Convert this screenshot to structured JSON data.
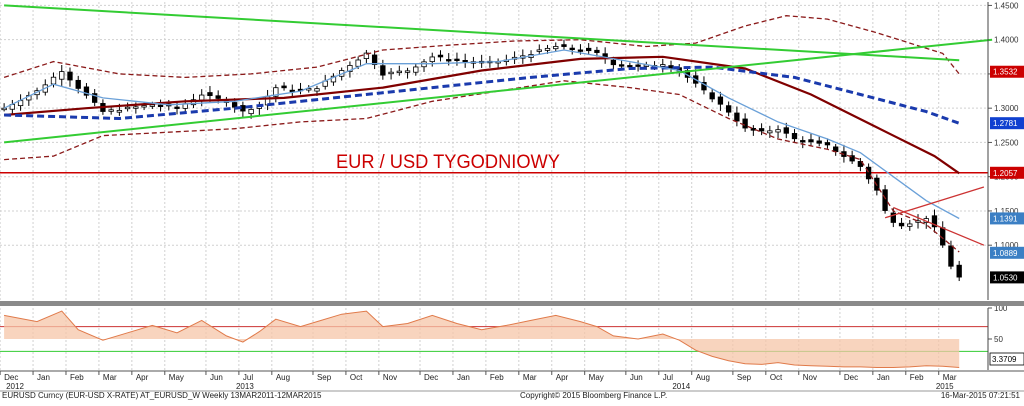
{
  "chart_data": {
    "type": "candlestick",
    "annotation": "EUR / USD TYGODNIOWY",
    "price_axis": {
      "ticks": [
        "1.4500",
        "1.4000",
        "1.3500",
        "1.3000",
        "1.2500",
        "1.2000",
        "1.1500",
        "1.1000"
      ],
      "range": [
        1.02,
        1.455
      ]
    },
    "price_labels": [
      {
        "text": "1.3532",
        "value": 1.3532,
        "color": "#cc0000"
      },
      {
        "text": "1.2781",
        "value": 1.2781,
        "color": "#1040d0"
      },
      {
        "text": "1.2057",
        "value": 1.2057,
        "color": "#cc0000"
      },
      {
        "text": "1.1391",
        "value": 1.1391,
        "color": "#3b7fc4"
      },
      {
        "text": "1.0889",
        "value": 1.0889,
        "color": "#3b7fc4"
      },
      {
        "text": "1.0530",
        "value": 1.053,
        "color": "#000000"
      }
    ],
    "horizontal_line": {
      "value": 1.2057,
      "color": "#cc0000"
    },
    "weeks": 120,
    "time_axis": {
      "months": [
        {
          "label": "Dec",
          "week": 0
        },
        {
          "label": "Jan",
          "week": 4
        },
        {
          "label": "Feb",
          "week": 8
        },
        {
          "label": "Mar",
          "week": 12
        },
        {
          "label": "Apr",
          "week": 16
        },
        {
          "label": "May",
          "week": 20
        },
        {
          "label": "Jun",
          "week": 25
        },
        {
          "label": "Jul",
          "week": 29
        },
        {
          "label": "Aug",
          "week": 33
        },
        {
          "label": "Sep",
          "week": 38
        },
        {
          "label": "Oct",
          "week": 42
        },
        {
          "label": "Nov",
          "week": 46
        },
        {
          "label": "Dec",
          "week": 51
        },
        {
          "label": "Jan",
          "week": 55
        },
        {
          "label": "Feb",
          "week": 59
        },
        {
          "label": "Mar",
          "week": 63
        },
        {
          "label": "Apr",
          "week": 67
        },
        {
          "label": "May",
          "week": 71
        },
        {
          "label": "Jun",
          "week": 76
        },
        {
          "label": "Jul",
          "week": 80
        },
        {
          "label": "Aug",
          "week": 84
        },
        {
          "label": "Sep",
          "week": 89
        },
        {
          "label": "Oct",
          "week": 93
        },
        {
          "label": "Nov",
          "week": 97
        },
        {
          "label": "Dec",
          "week": 102
        },
        {
          "label": "Jan",
          "week": 106
        },
        {
          "label": "Feb",
          "week": 110
        },
        {
          "label": "Mar",
          "week": 114
        }
      ],
      "years": [
        {
          "label": "2012",
          "week": 0
        },
        {
          "label": "2013",
          "week": 29
        },
        {
          "label": "2014",
          "week": 82
        },
        {
          "label": "2015",
          "week": 114
        }
      ]
    },
    "price_path": [
      [
        0,
        1.3
      ],
      [
        4,
        1.325
      ],
      [
        7,
        1.355
      ],
      [
        9,
        1.33
      ],
      [
        12,
        1.295
      ],
      [
        15,
        1.3
      ],
      [
        18,
        1.305
      ],
      [
        21,
        1.3
      ],
      [
        24,
        1.32
      ],
      [
        27,
        1.31
      ],
      [
        29,
        1.295
      ],
      [
        31,
        1.305
      ],
      [
        33,
        1.33
      ],
      [
        36,
        1.325
      ],
      [
        38,
        1.33
      ],
      [
        41,
        1.355
      ],
      [
        44,
        1.38
      ],
      [
        46,
        1.35
      ],
      [
        49,
        1.355
      ],
      [
        52,
        1.375
      ],
      [
        55,
        1.37
      ],
      [
        58,
        1.365
      ],
      [
        61,
        1.37
      ],
      [
        64,
        1.38
      ],
      [
        67,
        1.39
      ],
      [
        70,
        1.385
      ],
      [
        72,
        1.38
      ],
      [
        74,
        1.365
      ],
      [
        77,
        1.36
      ],
      [
        80,
        1.365
      ],
      [
        82,
        1.355
      ],
      [
        84,
        1.335
      ],
      [
        86,
        1.315
      ],
      [
        88,
        1.295
      ],
      [
        90,
        1.27
      ],
      [
        92,
        1.265
      ],
      [
        94,
        1.27
      ],
      [
        96,
        1.255
      ],
      [
        98,
        1.25
      ],
      [
        100,
        1.245
      ],
      [
        102,
        1.23
      ],
      [
        104,
        1.215
      ],
      [
        106,
        1.18
      ],
      [
        107,
        1.15
      ],
      [
        108,
        1.135
      ],
      [
        109,
        1.13
      ],
      [
        111,
        1.135
      ],
      [
        112,
        1.14
      ],
      [
        113,
        1.125
      ],
      [
        114,
        1.1
      ],
      [
        115,
        1.07
      ],
      [
        116,
        1.053
      ]
    ],
    "overlays": [
      {
        "name": "",
        "color": "#800000",
        "style": "solid",
        "points": [
          [
            0,
            1.29
          ],
          [
            10,
            1.3
          ],
          [
            22,
            1.31
          ],
          [
            34,
            1.315
          ],
          [
            46,
            1.33
          ],
          [
            58,
            1.355
          ],
          [
            70,
            1.372
          ],
          [
            80,
            1.375
          ],
          [
            90,
            1.358
          ],
          [
            98,
            1.32
          ],
          [
            106,
            1.272
          ],
          [
            113,
            1.23
          ],
          [
            116,
            1.205
          ]
        ]
      },
      {
        "name": "",
        "color": "#1a3aad",
        "style": "dashed",
        "points": [
          [
            0,
            1.29
          ],
          [
            14,
            1.285
          ],
          [
            28,
            1.3
          ],
          [
            40,
            1.315
          ],
          [
            52,
            1.33
          ],
          [
            64,
            1.345
          ],
          [
            76,
            1.358
          ],
          [
            86,
            1.36
          ],
          [
            96,
            1.345
          ],
          [
            104,
            1.32
          ],
          [
            112,
            1.295
          ],
          [
            116,
            1.278
          ]
        ]
      },
      {
        "name": "",
        "color": "#6aa0d8",
        "style": "solid",
        "points": [
          [
            0,
            1.3
          ],
          [
            6,
            1.335
          ],
          [
            12,
            1.315
          ],
          [
            20,
            1.305
          ],
          [
            28,
            1.31
          ],
          [
            36,
            1.325
          ],
          [
            44,
            1.365
          ],
          [
            52,
            1.365
          ],
          [
            60,
            1.368
          ],
          [
            68,
            1.385
          ],
          [
            76,
            1.368
          ],
          [
            82,
            1.355
          ],
          [
            88,
            1.315
          ],
          [
            94,
            1.28
          ],
          [
            100,
            1.255
          ],
          [
            104,
            1.235
          ],
          [
            108,
            1.2
          ],
          [
            112,
            1.165
          ],
          [
            116,
            1.139
          ]
        ]
      },
      {
        "name": "",
        "color": "#8b1a1a",
        "style": "dashed",
        "points": [
          [
            0,
            1.345
          ],
          [
            6,
            1.368
          ],
          [
            14,
            1.35
          ],
          [
            22,
            1.345
          ],
          [
            30,
            1.35
          ],
          [
            38,
            1.36
          ],
          [
            46,
            1.385
          ],
          [
            54,
            1.392
          ],
          [
            62,
            1.398
          ],
          [
            70,
            1.4
          ],
          [
            78,
            1.39
          ],
          [
            84,
            1.395
          ],
          [
            90,
            1.42
          ],
          [
            95,
            1.435
          ],
          [
            100,
            1.43
          ],
          [
            106,
            1.41
          ],
          [
            110,
            1.395
          ],
          [
            114,
            1.38
          ],
          [
            116,
            1.35
          ]
        ]
      },
      {
        "name": "",
        "color": "#8b1a1a",
        "style": "dashed",
        "points": [
          [
            0,
            1.225
          ],
          [
            6,
            1.23
          ],
          [
            12,
            1.26
          ],
          [
            20,
            1.265
          ],
          [
            28,
            1.27
          ],
          [
            36,
            1.28
          ],
          [
            44,
            1.285
          ],
          [
            52,
            1.31
          ],
          [
            60,
            1.325
          ],
          [
            68,
            1.34
          ],
          [
            76,
            1.33
          ],
          [
            82,
            1.32
          ],
          [
            88,
            1.285
          ],
          [
            94,
            1.255
          ],
          [
            100,
            1.24
          ],
          [
            104,
            1.225
          ],
          [
            108,
            1.15
          ],
          [
            112,
            1.13
          ],
          [
            116,
            1.09
          ]
        ]
      },
      {
        "name": "",
        "color": "#33cc33",
        "style": "solid",
        "points": [
          [
            0,
            1.45
          ],
          [
            116,
            1.37
          ]
        ]
      },
      {
        "name": "",
        "color": "#33cc33",
        "style": "solid",
        "points": [
          [
            0,
            1.25
          ],
          [
            120,
            1.4
          ]
        ]
      },
      {
        "name": "",
        "color": "#cc3333",
        "style": "solid",
        "points": [
          [
            107,
            1.14
          ],
          [
            119,
            1.185
          ]
        ]
      },
      {
        "name": "",
        "color": "#cc3333",
        "style": "solid",
        "points": [
          [
            108,
            1.155
          ],
          [
            119,
            1.1
          ]
        ]
      }
    ],
    "indicator": {
      "ticks": [
        "100",
        "50"
      ],
      "range": [
        0,
        100
      ],
      "value_label": "3.3709",
      "lines": [
        70,
        30
      ],
      "path": [
        [
          0,
          88
        ],
        [
          4,
          78
        ],
        [
          7,
          95
        ],
        [
          9,
          65
        ],
        [
          12,
          48
        ],
        [
          15,
          60
        ],
        [
          18,
          72
        ],
        [
          21,
          60
        ],
        [
          24,
          80
        ],
        [
          27,
          55
        ],
        [
          29,
          45
        ],
        [
          31,
          62
        ],
        [
          33,
          82
        ],
        [
          36,
          70
        ],
        [
          38,
          78
        ],
        [
          41,
          90
        ],
        [
          44,
          95
        ],
        [
          46,
          70
        ],
        [
          49,
          75
        ],
        [
          52,
          88
        ],
        [
          55,
          75
        ],
        [
          58,
          65
        ],
        [
          61,
          72
        ],
        [
          64,
          80
        ],
        [
          67,
          88
        ],
        [
          70,
          78
        ],
        [
          72,
          70
        ],
        [
          74,
          55
        ],
        [
          77,
          50
        ],
        [
          80,
          58
        ],
        [
          82,
          48
        ],
        [
          84,
          32
        ],
        [
          86,
          22
        ],
        [
          88,
          15
        ],
        [
          90,
          10
        ],
        [
          92,
          9
        ],
        [
          94,
          12
        ],
        [
          96,
          8
        ],
        [
          98,
          7
        ],
        [
          100,
          6
        ],
        [
          102,
          5
        ],
        [
          104,
          5
        ],
        [
          106,
          4
        ],
        [
          108,
          4
        ],
        [
          110,
          5
        ],
        [
          112,
          7
        ],
        [
          114,
          6
        ],
        [
          116,
          4
        ]
      ]
    },
    "footer": {
      "left": "EURUSD Curncy (EUR-USD X-RATE) AT_EURUSD_W  Weekly 13MAR2011-12MAR2015",
      "center": "Copyright© 2015 Bloomberg Finance L.P.",
      "right": "16-Mar-2015 07:21:51"
    }
  }
}
